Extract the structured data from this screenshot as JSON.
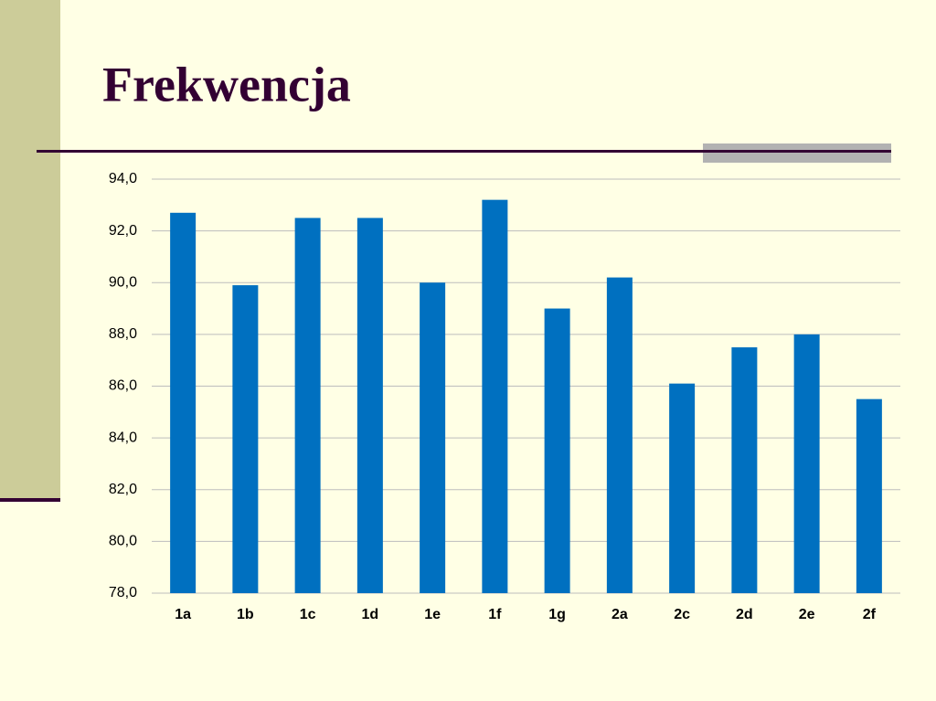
{
  "chart_data": {
    "type": "bar",
    "title": "Frekwencja",
    "categories": [
      "1a",
      "1b",
      "1c",
      "1d",
      "1e",
      "1f",
      "1g",
      "2a",
      "2c",
      "2d",
      "2e",
      "2f"
    ],
    "values": [
      92.7,
      89.9,
      92.5,
      92.5,
      90.0,
      93.2,
      89.0,
      90.2,
      86.1,
      87.5,
      88.0,
      85.5
    ],
    "color": "#0070c0",
    "ylim": [
      78,
      94
    ],
    "yticks": [
      {
        "value": 78,
        "label": "78,0"
      },
      {
        "value": 80,
        "label": "80,0"
      },
      {
        "value": 82,
        "label": "82,0"
      },
      {
        "value": 84,
        "label": "84,0"
      },
      {
        "value": 86,
        "label": "86,0"
      },
      {
        "value": 88,
        "label": "88,0"
      },
      {
        "value": 90,
        "label": "90,0"
      },
      {
        "value": 92,
        "label": "92,0"
      },
      {
        "value": 94,
        "label": "94,0"
      }
    ],
    "grid": true
  }
}
